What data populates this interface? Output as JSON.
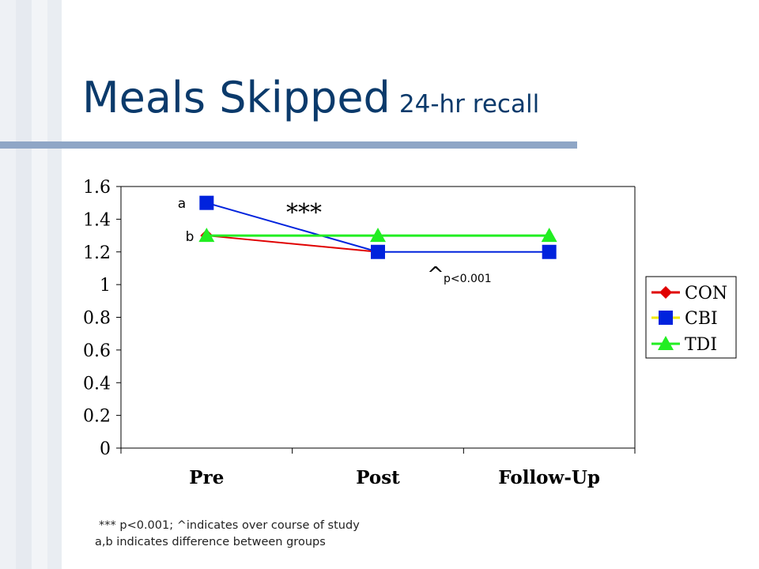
{
  "slide": {
    "title": "Meals Skipped",
    "subtitle": "24-hr recall",
    "footnotes": [
      "*** p<0.001; ^indicates over course of study",
      "a,b  indicates difference between groups"
    ]
  },
  "colors": {
    "title": "#0b3a6b",
    "rule": "#8fa6c6",
    "stripe_light": "#f1f3f6",
    "stripe_dark": "#e3e7ee"
  },
  "chart_data": {
    "type": "line",
    "categories": [
      "Pre",
      "Post",
      "Follow-Up"
    ],
    "ylim": [
      0,
      1.6
    ],
    "yticks": [
      "0",
      "0.2",
      "0.4",
      "0.6",
      "0.8",
      "1",
      "1.2",
      "1.4",
      "1.6"
    ],
    "series": [
      {
        "name": "CON",
        "values": [
          1.3,
          1.2,
          null
        ],
        "color": "#e00000",
        "marker": "diamond"
      },
      {
        "name": "CBI",
        "values": [
          1.5,
          1.2,
          1.2
        ],
        "color": "#0022dd",
        "marker": "square"
      },
      {
        "name": "TDI",
        "values": [
          1.3,
          1.3,
          1.3
        ],
        "color": "#22ee22",
        "marker": "triangle"
      }
    ],
    "annotations": [
      "a",
      "b",
      "***",
      "^",
      "p<0.001"
    ],
    "legend_position": "right",
    "grid": false
  }
}
